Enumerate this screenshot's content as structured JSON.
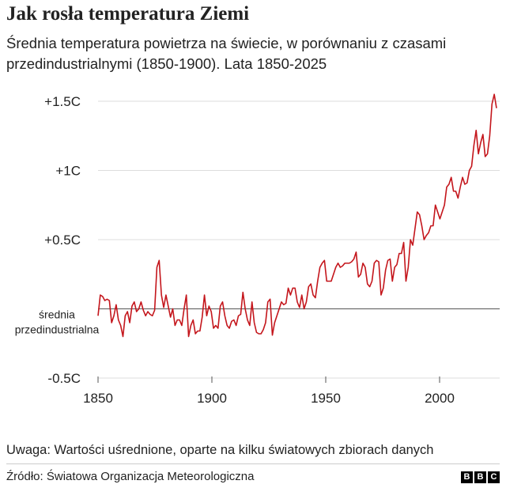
{
  "header": {
    "title": "Jak rosła temperatura Ziemi",
    "subtitle": "Średnia temperatura powietrza na świecie, w porównaniu z czasami przedindustrialnymi (1850-1900). Lata 1850-2025"
  },
  "footer": {
    "note": "Uwaga: Wartości uśrednione, oparte na kilku światowych zbiorach danych",
    "source": "Źródło: Światowa Organizacja Meteorologiczna",
    "logo_letters": [
      "B",
      "B",
      "C"
    ]
  },
  "colors": {
    "line": "#c4161c",
    "grid": "#dddddd",
    "baseline": "#555555",
    "text": "#222222"
  },
  "chart_data": {
    "type": "line",
    "title": "Jak rosła temperatura Ziemi",
    "xlim": [
      1850,
      2025
    ],
    "ylim": [
      -0.5,
      1.5
    ],
    "x_ticks": [
      1850,
      1900,
      1950,
      2000
    ],
    "x_tick_labels": [
      "1850",
      "1900",
      "1950",
      "2000"
    ],
    "y_ticks": [
      1.5,
      1.0,
      0.5,
      -0.5
    ],
    "y_tick_labels": [
      "+1.5C",
      "+1C",
      "+0.5C",
      "-0.5C"
    ],
    "baseline": {
      "value": 0,
      "label_lines": [
        "średnia",
        "przedindustrialna"
      ]
    },
    "grid": true,
    "series": [
      {
        "x_start": 1850,
        "x_end": 2025,
        "values": [
          -0.05,
          0.1,
          0.09,
          0.06,
          0.07,
          0.06,
          -0.1,
          -0.05,
          0.03,
          -0.08,
          -0.12,
          -0.2,
          -0.05,
          -0.02,
          -0.1,
          0.02,
          0.05,
          -0.02,
          0.0,
          0.05,
          -0.01,
          -0.05,
          -0.02,
          -0.04,
          -0.05,
          -0.01,
          0.3,
          0.35,
          0.1,
          0.01,
          0.1,
          0.02,
          -0.06,
          0.0,
          -0.12,
          -0.08,
          -0.08,
          -0.12,
          0.0,
          0.1,
          -0.2,
          -0.12,
          -0.08,
          -0.18,
          -0.16,
          -0.16,
          -0.06,
          0.1,
          -0.05,
          0.02,
          -0.02,
          -0.14,
          -0.12,
          -0.14,
          0.02,
          0.05,
          -0.05,
          -0.12,
          -0.14,
          -0.09,
          -0.08,
          -0.12,
          -0.05,
          -0.04,
          0.12,
          0.0,
          -0.08,
          -0.12,
          0.05,
          -0.1,
          -0.17,
          -0.18,
          -0.18,
          -0.15,
          -0.1,
          0.05,
          0.07,
          -0.19,
          -0.1,
          -0.05,
          0.0,
          0.05,
          0.03,
          0.04,
          0.15,
          0.1,
          0.15,
          0.15,
          0.05,
          0.01,
          0.1,
          0.0,
          0.05,
          0.16,
          0.18,
          0.1,
          0.08,
          0.2,
          0.3,
          0.33,
          0.35,
          0.2,
          0.2,
          0.2,
          0.25,
          0.3,
          0.33,
          0.3,
          0.31,
          0.33,
          0.33,
          0.33,
          0.34,
          0.36,
          0.41,
          0.23,
          0.25,
          0.33,
          0.3,
          0.18,
          0.16,
          0.2,
          0.33,
          0.35,
          0.34,
          0.1,
          0.15,
          0.28,
          0.35,
          0.36,
          0.2,
          0.3,
          0.32,
          0.4,
          0.4,
          0.48,
          0.2,
          0.3,
          0.5,
          0.46,
          0.58,
          0.7,
          0.68,
          0.6,
          0.5,
          0.53,
          0.55,
          0.6,
          0.6,
          0.75,
          0.7,
          0.65,
          0.7,
          0.75,
          0.88,
          0.9,
          0.95,
          0.85,
          0.85,
          0.8,
          0.88,
          0.95,
          0.9,
          0.91,
          1.0,
          1.03,
          1.18,
          1.29,
          1.12,
          1.2,
          1.26,
          1.1,
          1.12,
          1.25,
          1.48,
          1.55,
          1.45
        ]
      }
    ]
  }
}
